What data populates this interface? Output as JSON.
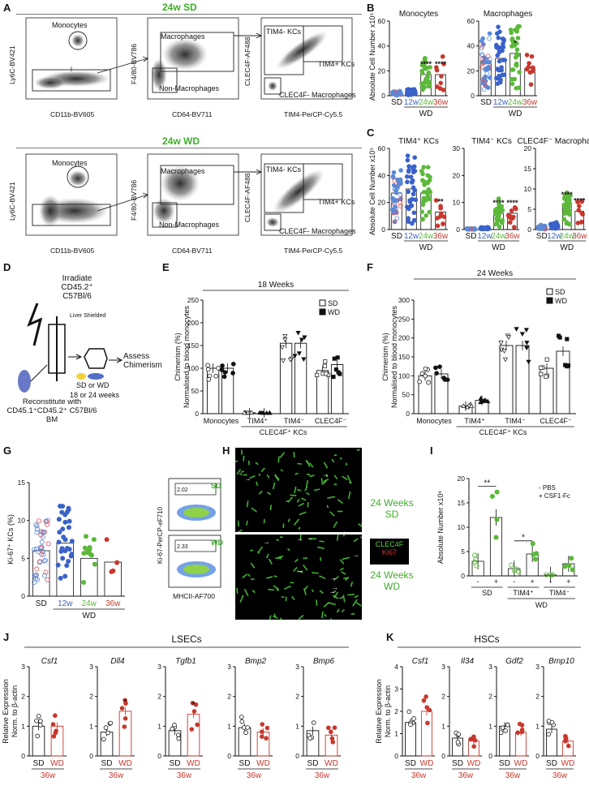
{
  "colors": {
    "sd": "#4a7bd0",
    "sd_open": "#e05050",
    "w12": "#3a62c8",
    "w24": "#5cb83a",
    "w36": "#c8372d",
    "green": "#3fae2a",
    "dark": "#111111"
  },
  "panel_letters": [
    "A",
    "B",
    "C",
    "D",
    "E",
    "F",
    "G",
    "H",
    "I",
    "J",
    "K"
  ],
  "A": {
    "title_sd": "24w SD",
    "title_wd": "24w WD",
    "p1": {
      "gate1": "Monocytes",
      "ylabel": "Ly6C-BV421",
      "xlabel": "CD11b-BV605"
    },
    "p2": {
      "gate1": "Macrophages",
      "gate2": "Non-Macrophages",
      "ylabel": "F4/80-BV786",
      "xlabel": "CD64-BV711"
    },
    "p3": {
      "gate1": "TIM4- KCs",
      "gate2": "TIM4+ KCs",
      "gate3": "CLEC4F- Macrophages",
      "ylabel": "CLEC4F-AF488",
      "xlabel": "TIM4-PerCP-Cy5.5"
    },
    "ticks": [
      "10⁵",
      "10⁴",
      "10³",
      "0",
      "-10³"
    ]
  },
  "B": {
    "ylabel": "Absolute Cell Number x10⁵",
    "wd_label": "WD",
    "groups": [
      "SD",
      "12w",
      "24w",
      "36w"
    ]
  },
  "C": {
    "ylabel": "Absolute Cell Number x10⁵",
    "wd_label": "WD",
    "groups": [
      "SD",
      "12w",
      "24w",
      "36w"
    ]
  },
  "D": {
    "irradiate": "Irradiate CD45.2⁺ C57Bl/6",
    "shield": "Liver Shielded",
    "diet": "SD or WD",
    "duration": "18 or 24 weeks",
    "assess": "Assess Chimerism",
    "reconstitute": "Reconstitute with CD45.1⁺CD45.2⁺ C57Bl/6 BM"
  },
  "E": {
    "title": "18 Weeks",
    "ylabel1": "Chimerism (%)",
    "ylabel2": "Normalised to blood monocytes",
    "legend": [
      "SD",
      "WD"
    ],
    "kc_label": "CLEC4F⁺ KCs"
  },
  "F": {
    "title": "24 Weeks",
    "ylabel1": "Chimerism (%)",
    "ylabel2": "Normalised to blood monocytes",
    "legend": [
      "SD",
      "WD"
    ],
    "kc_label": "CLEC4F⁺ KCs"
  },
  "G": {
    "ylabel": "Ki-67⁺ KCs (%)",
    "groups": [
      "SD",
      "12w",
      "24w",
      "36w"
    ],
    "wd_label": "WD",
    "flow_sd_tag": "SD",
    "flow_wd_tag": "WD",
    "flow_sd_val": "2.02",
    "flow_wd_val": "2.33",
    "flow_ylabel": "Ki-67-PerCP-eF710",
    "flow_xlabel": "MHCII-AF700"
  },
  "H": {
    "top_label_1": "24 Weeks",
    "top_label_2": "SD",
    "bot_label_1": "24 Weeks",
    "bot_label_2": "WD",
    "legend_a": "CLEC4F",
    "legend_b": "Ki67"
  },
  "I": {
    "ylabel": "Absolute Number x10⁶",
    "legend": [
      "PBS",
      "CSF1-Fc"
    ],
    "groups": [
      "SD",
      "TIM4⁺",
      "TIM4⁻"
    ],
    "wd_label": "WD",
    "signs": [
      "-",
      "+"
    ],
    "sig1": "**",
    "sig2": "*"
  },
  "J": {
    "title": "LSECs",
    "ylabel1": "Relative Expression",
    "ylabel2": "Norm. to β-actin",
    "xgroup": [
      "SD",
      "WD"
    ],
    "time": "36w"
  },
  "K": {
    "title": "HSCs",
    "ylabel1": "Relative Expression",
    "ylabel2": "Norm. to β-actin",
    "xgroup": [
      "SD",
      "WD"
    ],
    "time": "36w"
  },
  "chart_data": [
    {
      "type": "scatter",
      "panel": "B",
      "title": "Monocytes",
      "categories": [
        "SD",
        "12w",
        "24w",
        "36w"
      ],
      "values": [
        2,
        3,
        17,
        17
      ],
      "ylim": [
        0,
        60
      ],
      "yticks": [
        0,
        20,
        40,
        60
      ],
      "sig": [
        "",
        "",
        "****",
        "****"
      ]
    },
    {
      "type": "scatter",
      "panel": "B",
      "title": "Macrophages",
      "categories": [
        "SD",
        "12w",
        "24w",
        "36w"
      ],
      "values": [
        28,
        30,
        34,
        22
      ],
      "ylim": [
        0,
        60
      ],
      "yticks": [
        0,
        20,
        40,
        60
      ],
      "sig": [
        "",
        "",
        "*",
        ""
      ]
    },
    {
      "type": "scatter",
      "panel": "C",
      "title": "TIM4⁺ KCs",
      "categories": [
        "SD",
        "12w",
        "24w",
        "36w"
      ],
      "values": [
        27,
        30,
        27,
        13
      ],
      "ylim": [
        0,
        60
      ],
      "yticks": [
        0,
        20,
        40,
        60
      ],
      "sig": [
        "",
        "",
        "",
        "**"
      ]
    },
    {
      "type": "scatter",
      "panel": "C",
      "title": "TIM4⁻ KCs",
      "categories": [
        "SD",
        "12w",
        "24w",
        "36w"
      ],
      "values": [
        0.2,
        0.5,
        6,
        6
      ],
      "ylim": [
        0,
        30
      ],
      "yticks": [
        0,
        10,
        20,
        30
      ],
      "sig": [
        "",
        "",
        "****",
        "****"
      ]
    },
    {
      "type": "scatter",
      "panel": "C",
      "title": "CLEC4F⁻ Macrophages",
      "categories": [
        "SD",
        "12w",
        "24w",
        "36w"
      ],
      "values": [
        0.6,
        1,
        6,
        4.5
      ],
      "ylim": [
        0,
        20
      ],
      "yticks": [
        0,
        5,
        10,
        15,
        20
      ],
      "sig": [
        "",
        "",
        "****",
        "****"
      ]
    },
    {
      "type": "bar",
      "panel": "E",
      "title": "18 Weeks",
      "categories": [
        "Monocytes",
        "TIM4⁺",
        "TIM4⁻",
        "CLEC4F⁻"
      ],
      "series": [
        {
          "name": "SD",
          "values": [
            100,
            2,
            155,
            95
          ]
        },
        {
          "name": "WD",
          "values": [
            100,
            2,
            155,
            108
          ]
        }
      ],
      "ylim": [
        0,
        250
      ],
      "yticks": [
        0,
        50,
        100,
        150,
        200,
        250
      ]
    },
    {
      "type": "bar",
      "panel": "F",
      "title": "24 Weeks",
      "categories": [
        "Monocytes",
        "TIM4⁺",
        "TIM4⁻",
        "CLEC4F⁻"
      ],
      "series": [
        {
          "name": "SD",
          "values": [
            100,
            20,
            180,
            120
          ]
        },
        {
          "name": "WD",
          "values": [
            105,
            35,
            180,
            165
          ]
        }
      ],
      "ylim": [
        0,
        300
      ],
      "yticks": [
        0,
        50,
        100,
        150,
        200,
        250,
        300
      ]
    },
    {
      "type": "bar",
      "panel": "G",
      "categories": [
        "SD",
        "12w",
        "24w",
        "36w"
      ],
      "values": [
        6,
        7,
        5,
        4.5
      ],
      "ylim": [
        0,
        15
      ],
      "yticks": [
        0,
        5,
        10,
        15
      ]
    },
    {
      "type": "bar",
      "panel": "I",
      "categories": [
        "SD -",
        "SD +",
        "TIM4⁺ -",
        "TIM4⁺ +",
        "TIM4⁻ -",
        "TIM4⁻ +"
      ],
      "values": [
        3,
        12,
        1.5,
        4.5,
        0.2,
        2.5
      ],
      "ylim": [
        0,
        20
      ],
      "yticks": [
        0,
        5,
        10,
        15,
        20
      ]
    },
    {
      "type": "bar",
      "panel": "J",
      "title": "Csf1",
      "categories": [
        "SD",
        "WD"
      ],
      "values": [
        1,
        1
      ],
      "ylim": [
        0,
        3
      ],
      "yticks": [
        0,
        1,
        2,
        3
      ],
      "sig": [
        "",
        ""
      ]
    },
    {
      "type": "bar",
      "panel": "J",
      "title": "Dll4",
      "categories": [
        "SD",
        "WD"
      ],
      "values": [
        0.8,
        1.5
      ],
      "ylim": [
        0,
        3
      ],
      "yticks": [
        0,
        1,
        2,
        3
      ],
      "sig": [
        "",
        "*"
      ]
    },
    {
      "type": "bar",
      "panel": "J",
      "title": "Tgfb1",
      "categories": [
        "SD",
        "WD"
      ],
      "values": [
        0.85,
        1.4
      ],
      "ylim": [
        0,
        3
      ],
      "yticks": [
        0,
        1,
        2,
        3
      ],
      "sig": [
        "",
        "*"
      ]
    },
    {
      "type": "bar",
      "panel": "J",
      "title": "Bmp2",
      "categories": [
        "SD",
        "WD"
      ],
      "values": [
        0.95,
        0.8
      ],
      "ylim": [
        0,
        3
      ],
      "yticks": [
        0,
        1,
        2,
        3
      ],
      "sig": [
        "",
        ""
      ]
    },
    {
      "type": "bar",
      "panel": "J",
      "title": "Bmp6",
      "categories": [
        "SD",
        "WD"
      ],
      "values": [
        0.85,
        0.7
      ],
      "ylim": [
        0,
        3
      ],
      "yticks": [
        0,
        1,
        2,
        3
      ],
      "sig": [
        "",
        ""
      ]
    },
    {
      "type": "bar",
      "panel": "K",
      "title": "Csf1",
      "categories": [
        "SD",
        "WD"
      ],
      "values": [
        1.5,
        2.0
      ],
      "ylim": [
        0,
        4
      ],
      "yticks": [
        0,
        1,
        2,
        3,
        4
      ],
      "sig": [
        "",
        ""
      ]
    },
    {
      "type": "bar",
      "panel": "K",
      "title": "Il34",
      "categories": [
        "SD",
        "WD"
      ],
      "values": [
        0.6,
        0.5
      ],
      "ylim": [
        0,
        3
      ],
      "yticks": [
        0,
        1,
        2,
        3
      ],
      "sig": [
        "",
        ""
      ]
    },
    {
      "type": "bar",
      "panel": "K",
      "title": "Gdf2",
      "categories": [
        "SD",
        "WD"
      ],
      "values": [
        1.0,
        0.8
      ],
      "ylim": [
        0,
        3
      ],
      "yticks": [
        0,
        1,
        2,
        3
      ],
      "sig": [
        "",
        ""
      ]
    },
    {
      "type": "bar",
      "panel": "K",
      "title": "Bmp10",
      "categories": [
        "SD",
        "WD"
      ],
      "values": [
        0.9,
        0.5
      ],
      "ylim": [
        0,
        3
      ],
      "yticks": [
        0,
        1,
        2,
        3
      ],
      "sig": [
        "",
        ""
      ]
    }
  ]
}
